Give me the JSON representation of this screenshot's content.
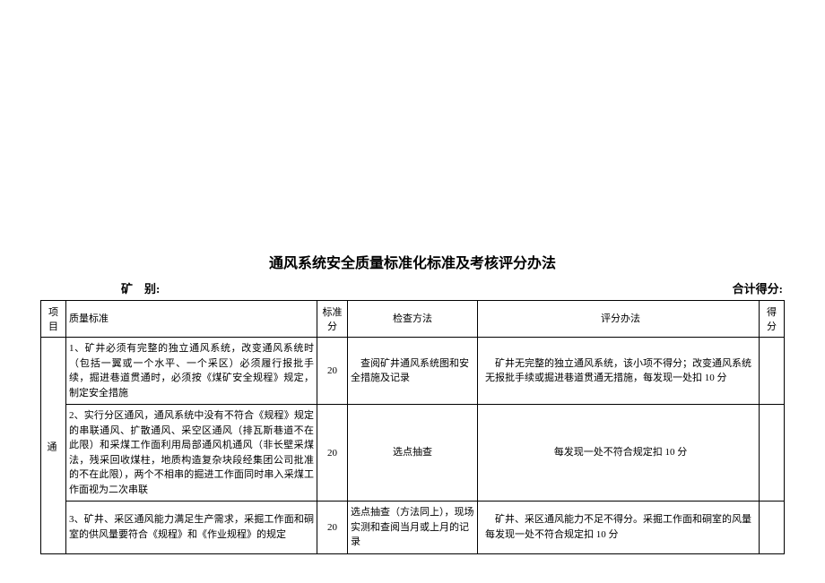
{
  "title": "通风系统安全质量标准化标准及考核评分办法",
  "header": {
    "mine_label": "矿　别:",
    "total_label": "合计得分:"
  },
  "columns": {
    "project": "项目",
    "standard": "质量标准",
    "score_std": "标准分",
    "method": "检查方法",
    "criteria": "评分办法",
    "score": "得分"
  },
  "project_name": "通",
  "rows": [
    {
      "standard": "1、矿井必须有完整的独立通风系统，改变通风系统时（包括一翼或一个水平、一个采区）必须履行报批手续，掘进巷道贯通时，必须按《煤矿安全规程》规定，制定安全措施",
      "score_std": "20",
      "method": "　查阅矿井通风系统图和安全措施及记录",
      "criteria": "　矿井无完整的独立通风系统，该小项不得分；改变通风系统无报批手续或掘进巷道贯通无措施，每发现一处扣 10 分",
      "method_align": "left"
    },
    {
      "standard": "2、实行分区通风，通风系统中没有不符合《规程》规定的串联通风、扩散通风、采空区通风（排瓦斯巷道不在此限）和采煤工作面利用局部通风机通风（非长壁采煤法，残采回收煤柱，地质构造复杂块段经集团公司批准的不在此限），两个不相串的掘进工作面同时串入采煤工作面视为二次串联",
      "score_std": "20",
      "method": "选点抽查",
      "criteria": "每发现一处不符合规定扣 10 分",
      "method_align": "center",
      "criteria_align": "center"
    },
    {
      "standard": "3、矿井、采区通风能力满足生产需求，采掘工作面和硐室的供风量要符合《规程》和《作业规程》的规定",
      "score_std": "20",
      "method": "选点抽查（方法同上），现场实测和查阅当月或上月的记录",
      "criteria": "　矿井、采区通风能力不足不得分。采掘工作面和硐室的风量每发现一处不符合规定扣 10 分",
      "method_align": "left"
    }
  ]
}
